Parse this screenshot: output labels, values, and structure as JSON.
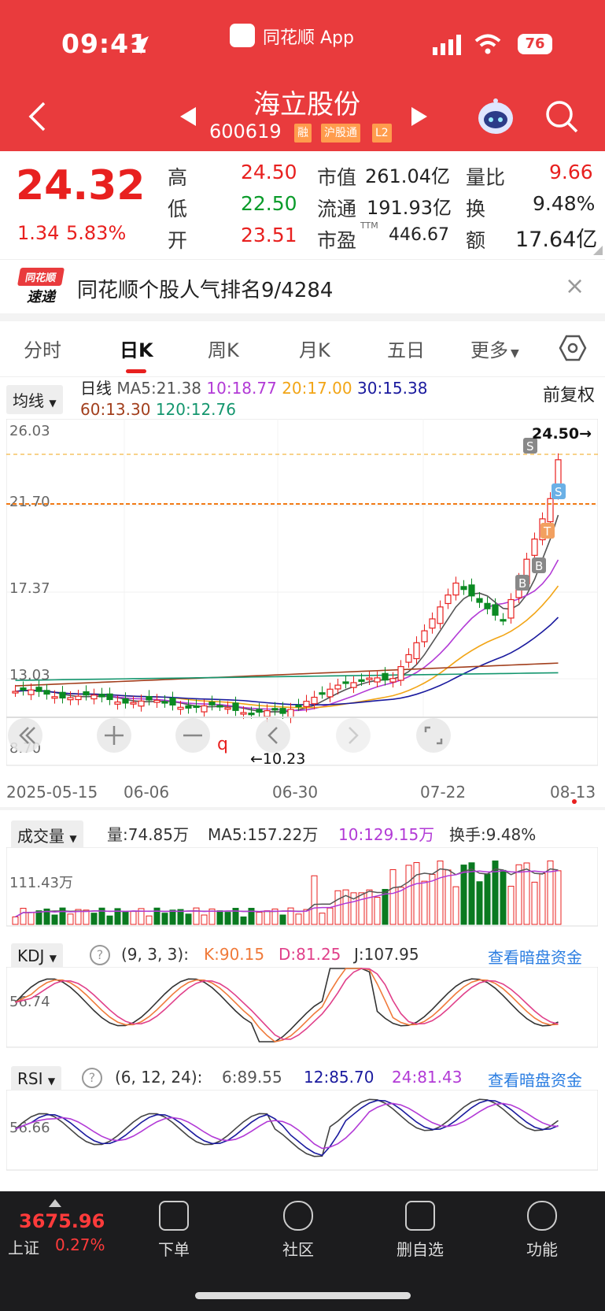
{
  "status": {
    "time": "09:41",
    "app": "同花顺 App",
    "battery": "76"
  },
  "header": {
    "title": "海立股份",
    "code": "600619",
    "tags": [
      "融",
      "沪股通",
      "L2"
    ]
  },
  "quote": {
    "price": "24.32",
    "change": "1.34",
    "change_pct": "5.83%",
    "rows": [
      {
        "l1": "高",
        "v1": "24.50",
        "l2": "市值",
        "v2": "261.04亿",
        "l3": "量比",
        "v3": "9.66"
      },
      {
        "l1": "低",
        "v1": "22.50",
        "l2": "流通",
        "v2": "191.93亿",
        "l3": "换",
        "v3": "9.48%"
      },
      {
        "l1": "开",
        "v1": "23.51",
        "l2": "市盈",
        "v2": "446.67",
        "l3": "额",
        "v3": "17.64亿"
      }
    ],
    "ttm": "TTM"
  },
  "banner": {
    "logo_top": "同花顺",
    "logo_bottom": "速递",
    "text": "同花顺个股人气排名9/4284",
    "close": "×"
  },
  "tabs": [
    "分时",
    "日K",
    "周K",
    "月K",
    "五日",
    "更多"
  ],
  "kline": {
    "ma_button": "均线",
    "legend": [
      {
        "text": "日线",
        "color": "#222222"
      },
      {
        "text": "MA5:21.38",
        "color": "#555555"
      },
      {
        "text": "10:18.77",
        "color": "#b23ad6"
      },
      {
        "text": "20:17.00",
        "color": "#f2a516"
      },
      {
        "text": "30:15.38",
        "color": "#1a1a9e"
      },
      {
        "text": "60:13.30",
        "color": "#a23f1d"
      },
      {
        "text": "120:12.76",
        "color": "#14966e"
      }
    ],
    "adjust": "前复权",
    "y_ticks": [
      "26.03",
      "21.70",
      "17.37",
      "13.03",
      "8.70"
    ],
    "high_label": "24.50→",
    "low_label": "←10.23",
    "dates": [
      "2025-05-15",
      "06-06",
      "06-30",
      "07-22",
      "08-13"
    ]
  },
  "volume": {
    "button": "成交量",
    "vol": "量:74.85万",
    "ma5": "MA5:157.22万",
    "ma10": "10:129.15万",
    "turnover": "换手:9.48%",
    "tick": "111.43万"
  },
  "kdj": {
    "button": "KDJ",
    "params": "(9, 3, 3):",
    "k": "K:90.15",
    "d": "D:81.25",
    "j": "J:107.95",
    "link": "查看暗盘资金",
    "tick": "56.74"
  },
  "rsi": {
    "button": "RSI",
    "params": "(6, 12, 24):",
    "r6": "6:89.55",
    "r12": "12:85.70",
    "r24": "24:81.43",
    "link": "查看暗盘资金",
    "tick": "56.66"
  },
  "footer": {
    "index_value": "3675.96",
    "index_name": "上证",
    "index_pct": "0.27%",
    "nav": [
      "下单",
      "社区",
      "删自选",
      "功能"
    ]
  }
}
